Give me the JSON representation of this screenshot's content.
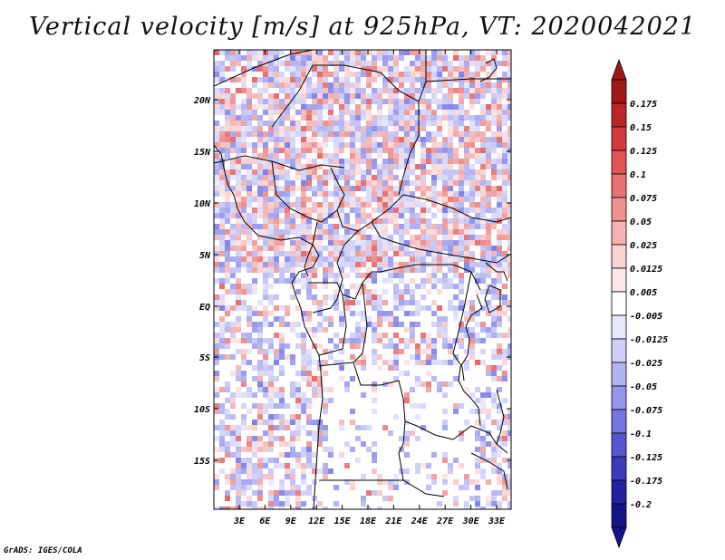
{
  "title": "Vertical velocity [m/s] at 925hPa, VT: 2020042021",
  "credit": "GrADS: IGES/COLA",
  "map": {
    "lat_labels": [
      "20N",
      "15N",
      "10N",
      "5N",
      "EQ",
      "5S",
      "10S",
      "15S"
    ],
    "lon_labels": [
      "3E",
      "6E",
      "9E",
      "12E",
      "15E",
      "18E",
      "21E",
      "24E",
      "27E",
      "30E",
      "33E"
    ]
  },
  "colorbar": {
    "labels": [
      "0.175",
      "0.15",
      "0.125",
      "0.1",
      "0.075",
      "0.05",
      "0.025",
      "0.0125",
      "0.005",
      "-0.005",
      "-0.0125",
      "-0.025",
      "-0.05",
      "-0.075",
      "-0.1",
      "-0.125",
      "-0.175",
      "-0.2"
    ],
    "colors": [
      "#a01818",
      "#bb2626",
      "#d23c3c",
      "#e25454",
      "#ea7272",
      "#f09090",
      "#f6b2b2",
      "#fbd2d2",
      "#fde8e8",
      "#ffffff",
      "#e8e8fd",
      "#cfcffa",
      "#b3b3f4",
      "#9494ed",
      "#7676e0",
      "#5656d2",
      "#3a3abd",
      "#2020a2",
      "#141488"
    ],
    "top_color": "#a01818",
    "bottom_color": "#141488"
  },
  "colors": {
    "background": "#ffffff",
    "positive": "#e05050",
    "negative": "#6060e0"
  }
}
